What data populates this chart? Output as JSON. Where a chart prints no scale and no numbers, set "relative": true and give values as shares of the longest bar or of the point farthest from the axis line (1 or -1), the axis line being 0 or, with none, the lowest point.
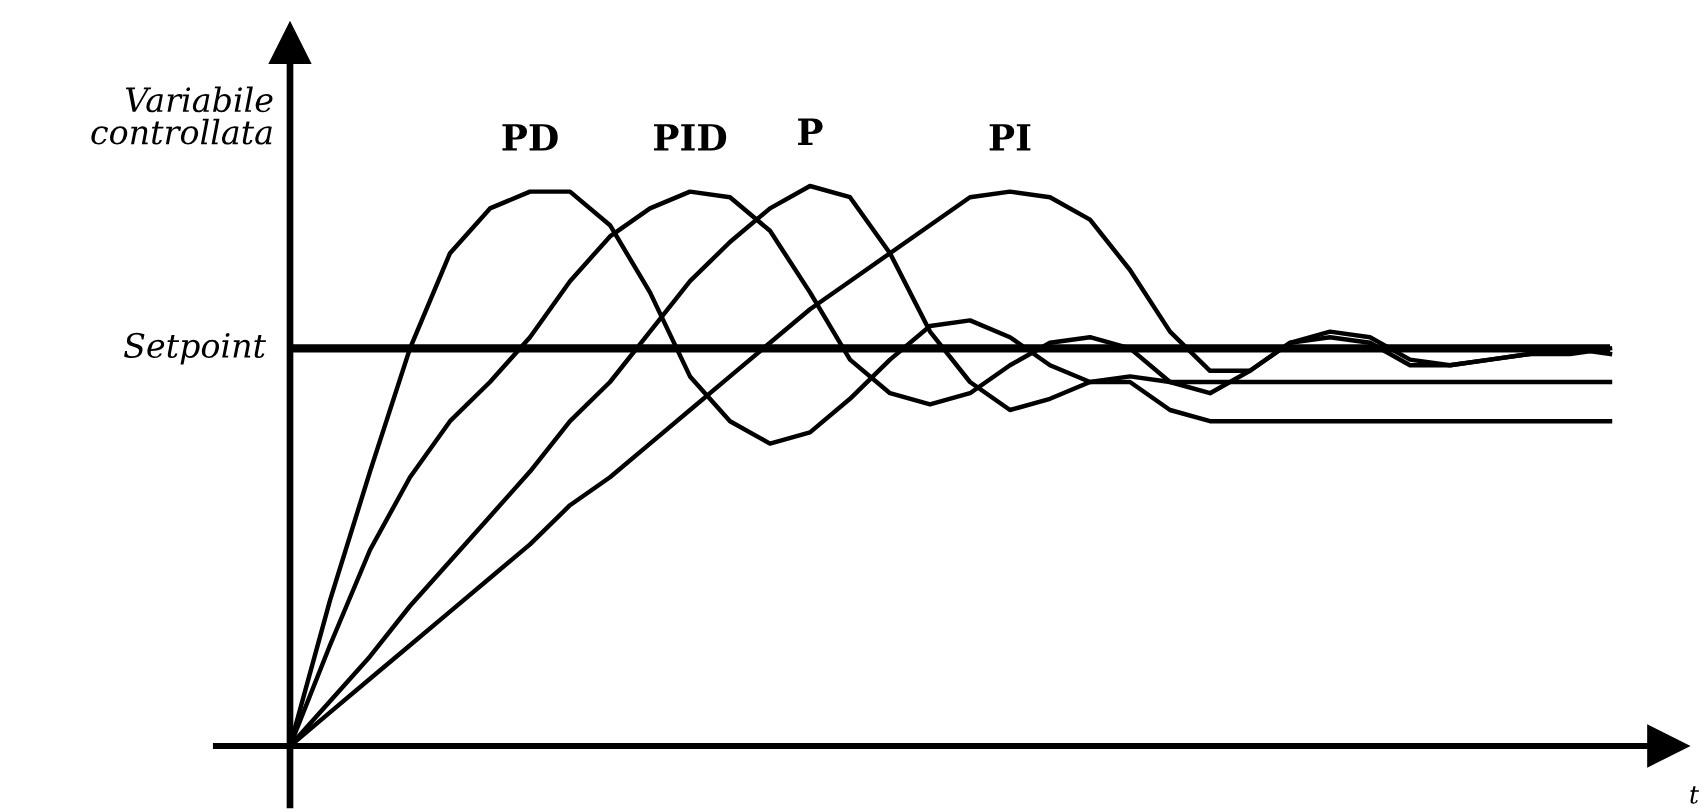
{
  "chart_data": {
    "type": "line",
    "relative": true,
    "xlabel": "t",
    "ylabel": "Variabile\ncontrollata",
    "categories": [
      null,
      null,
      null,
      null,
      null,
      null,
      null,
      null,
      null,
      null,
      null,
      null,
      null,
      null,
      null,
      null,
      null,
      null,
      null,
      null,
      null,
      null,
      null,
      null,
      null,
      null,
      null,
      null,
      null,
      null,
      null,
      null,
      null,
      null
    ],
    "series": [
      {
        "name": "PD",
        "color": "#000000",
        "values": [
          0,
          0.26,
          0.49,
          0.71,
          0.88,
          0.96,
          0.99,
          0.99,
          0.93,
          0.81,
          0.66,
          0.58,
          0.54,
          0.56,
          0.62,
          0.69,
          0.75,
          0.76,
          0.73,
          0.68,
          0.65,
          0.66,
          0.65,
          0.65,
          0.65,
          0.65,
          0.65,
          0.65,
          0.65,
          0.65,
          0.65,
          0.65,
          0.65,
          0.65
        ]
      },
      {
        "name": "PID",
        "color": "#000000",
        "values": [
          0,
          0.18,
          0.35,
          0.48,
          0.58,
          0.65,
          0.73,
          0.83,
          0.91,
          0.96,
          0.99,
          0.98,
          0.92,
          0.81,
          0.69,
          0.63,
          0.61,
          0.63,
          0.68,
          0.72,
          0.73,
          0.71,
          0.65,
          0.63,
          0.67,
          0.72,
          0.73,
          0.72,
          0.68,
          0.68,
          0.69,
          0.7,
          0.7,
          0.71
        ]
      },
      {
        "name": "P",
        "color": "#000000",
        "values": [
          0,
          0.08,
          0.16,
          0.25,
          0.33,
          0.41,
          0.49,
          0.58,
          0.65,
          0.74,
          0.83,
          0.9,
          0.96,
          1.0,
          0.98,
          0.88,
          0.74,
          0.65,
          0.6,
          0.62,
          0.65,
          0.65,
          0.6,
          0.58,
          0.58,
          0.58,
          0.58,
          0.58,
          0.58,
          0.58,
          0.58,
          0.58,
          0.58,
          0.58
        ]
      },
      {
        "name": "PI",
        "color": "#000000",
        "values": [
          0,
          0.06,
          0.12,
          0.18,
          0.24,
          0.3,
          0.36,
          0.43,
          0.48,
          0.54,
          0.6,
          0.66,
          0.72,
          0.78,
          0.83,
          0.88,
          0.93,
          0.98,
          0.99,
          0.98,
          0.94,
          0.85,
          0.74,
          0.67,
          0.67,
          0.72,
          0.74,
          0.73,
          0.69,
          0.68,
          0.69,
          0.7,
          0.71,
          0.7
        ]
      }
    ],
    "ref_lines": [
      {
        "axis": "y",
        "value": 0.71,
        "label": "Setpoint",
        "color": "#000000"
      }
    ]
  }
}
